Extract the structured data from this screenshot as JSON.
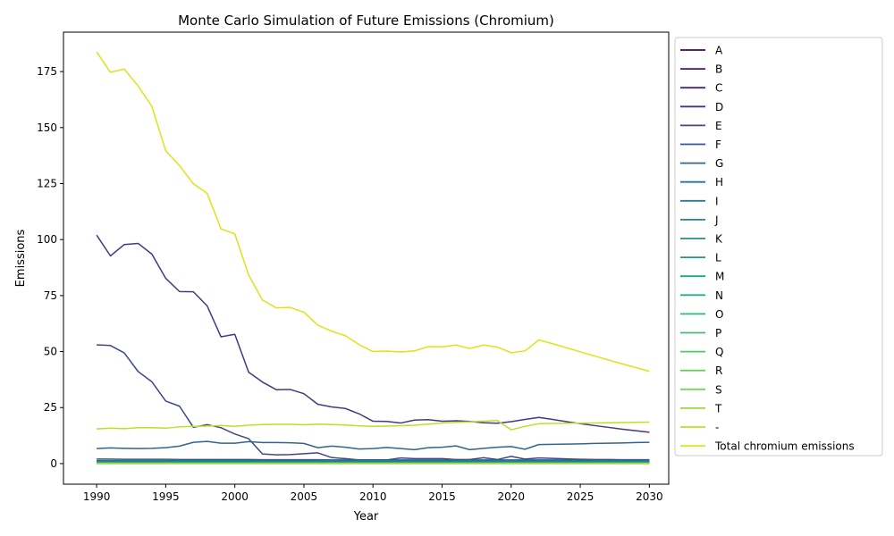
{
  "chart_data": {
    "type": "line",
    "title": "Monte Carlo Simulation of Future Emissions (Chromium)",
    "xlabel": "Year",
    "ylabel": "Emissions",
    "xlim": [
      1987.6,
      2031.4
    ],
    "ylim": [
      -9.2,
      192.6
    ],
    "xticks": [
      1990,
      1995,
      2000,
      2005,
      2010,
      2015,
      2020,
      2025,
      2030
    ],
    "yticks": [
      0,
      25,
      50,
      75,
      100,
      125,
      150,
      175
    ],
    "grid": false,
    "legend_position": "outside-right",
    "x": [
      1990,
      1991,
      1992,
      1993,
      1994,
      1995,
      1996,
      1997,
      1998,
      1999,
      2000,
      2001,
      2002,
      2003,
      2004,
      2005,
      2006,
      2007,
      2008,
      2009,
      2010,
      2011,
      2012,
      2013,
      2014,
      2015,
      2016,
      2017,
      2018,
      2019,
      2020,
      2021,
      2022,
      2023,
      2024,
      2025,
      2026,
      2027,
      2028,
      2029,
      2030
    ],
    "series": [
      {
        "name": "A",
        "color": "#440154",
        "values": [
          1.0,
          1.0,
          1.0,
          1.0,
          1.0,
          1.0,
          1.0,
          1.0,
          1.0,
          1.0,
          1.0,
          1.0,
          1.0,
          1.0,
          1.0,
          1.0,
          1.0,
          1.0,
          1.0,
          1.0,
          1.0,
          1.0,
          1.0,
          1.0,
          1.0,
          1.0,
          1.0,
          1.0,
          1.0,
          1.0,
          1.0,
          1.0,
          1.0,
          1.0,
          1.0,
          1.0,
          1.0,
          1.0,
          1.0,
          1.0,
          1.0
        ]
      },
      {
        "name": "B",
        "color": "#481467",
        "values": [
          0.6,
          0.6,
          0.6,
          0.6,
          0.6,
          0.6,
          0.6,
          0.6,
          0.6,
          0.6,
          0.6,
          0.6,
          0.6,
          0.6,
          0.6,
          0.6,
          0.6,
          0.6,
          0.6,
          0.6,
          0.6,
          0.6,
          0.6,
          0.6,
          0.6,
          0.6,
          0.6,
          0.6,
          0.6,
          0.6,
          0.6,
          0.6,
          0.6,
          0.6,
          0.6,
          0.6,
          0.6,
          0.6,
          0.6,
          0.6,
          0.6
        ]
      },
      {
        "name": "C",
        "color": "#482576",
        "values": [
          0.4,
          0.4,
          0.4,
          0.4,
          0.4,
          0.4,
          0.4,
          0.4,
          0.4,
          0.4,
          0.4,
          0.4,
          0.4,
          0.4,
          0.4,
          0.4,
          0.4,
          0.4,
          0.4,
          0.4,
          0.4,
          0.4,
          0.4,
          0.4,
          0.4,
          0.4,
          0.4,
          0.4,
          0.4,
          0.4,
          0.4,
          0.4,
          0.4,
          0.4,
          0.4,
          0.4,
          0.4,
          0.4,
          0.4,
          0.4,
          0.4
        ]
      },
      {
        "name": "D",
        "color": "#453781",
        "values": [
          102.0,
          92.7,
          97.8,
          98.3,
          93.5,
          82.7,
          76.8,
          76.7,
          70.4,
          56.6,
          57.7,
          40.8,
          36.4,
          33.0,
          33.1,
          31.2,
          26.5,
          25.3,
          24.6,
          22.2,
          18.9,
          18.8,
          18.1,
          19.4,
          19.6,
          18.9,
          19.1,
          18.8,
          18.2,
          18.0,
          18.7,
          19.7,
          20.6,
          19.7,
          18.7,
          17.8,
          17.0,
          16.2,
          15.4,
          14.7,
          14.0
        ]
      },
      {
        "name": "E",
        "color": "#3f4788",
        "values": [
          53.0,
          52.7,
          49.4,
          41.1,
          36.5,
          27.9,
          25.6,
          16.2,
          17.4,
          16.0,
          13.2,
          11.1,
          4.3,
          3.9,
          4.0,
          4.4,
          4.8,
          2.7,
          2.2,
          1.6,
          1.6,
          1.6,
          2.5,
          2.2,
          2.2,
          2.2,
          1.8,
          1.8,
          2.6,
          1.8,
          3.2,
          2.0,
          2.5,
          2.3,
          2.1,
          1.9,
          1.8,
          1.8,
          1.7,
          1.7,
          1.7
        ]
      },
      {
        "name": "F",
        "color": "#39558c",
        "values": [
          2.0,
          2.0,
          1.9,
          1.9,
          1.9,
          1.9,
          1.8,
          1.8,
          1.8,
          1.8,
          1.8,
          1.8,
          1.7,
          1.7,
          1.7,
          1.7,
          1.7,
          1.6,
          1.6,
          1.6,
          1.6,
          1.6,
          1.6,
          1.6,
          1.6,
          1.6,
          1.6,
          1.6,
          1.6,
          1.6,
          1.6,
          1.6,
          1.6,
          1.6,
          1.6,
          1.6,
          1.6,
          1.6,
          1.6,
          1.6,
          1.6
        ]
      },
      {
        "name": "G",
        "color": "#32648e",
        "values": [
          6.7,
          7.0,
          6.8,
          6.7,
          6.8,
          7.1,
          7.8,
          9.5,
          9.9,
          9.1,
          9.1,
          9.8,
          9.4,
          9.4,
          9.3,
          9.0,
          7.1,
          7.8,
          7.3,
          6.5,
          6.7,
          7.2,
          6.7,
          6.2,
          7.1,
          7.3,
          7.9,
          6.2,
          6.8,
          7.3,
          7.6,
          6.4,
          8.5,
          8.6,
          8.7,
          8.8,
          9.0,
          9.1,
          9.2,
          9.4,
          9.5
        ]
      },
      {
        "name": "H",
        "color": "#2d718e",
        "values": [
          1.3,
          1.3,
          1.3,
          1.3,
          1.3,
          1.3,
          1.3,
          1.3,
          1.3,
          1.3,
          1.3,
          1.3,
          1.3,
          1.3,
          1.3,
          1.3,
          1.3,
          1.3,
          1.3,
          1.3,
          1.3,
          1.3,
          1.3,
          1.3,
          1.3,
          1.3,
          1.3,
          1.3,
          1.3,
          1.3,
          1.3,
          1.3,
          1.3,
          1.3,
          1.3,
          1.3,
          1.3,
          1.3,
          1.3,
          1.3,
          1.3
        ]
      },
      {
        "name": "I",
        "color": "#297b8e",
        "values": [
          0.9,
          0.9,
          0.9,
          0.9,
          0.9,
          0.9,
          0.9,
          0.9,
          0.9,
          0.9,
          0.9,
          0.9,
          0.9,
          0.9,
          0.9,
          0.9,
          0.9,
          0.9,
          0.9,
          0.9,
          0.9,
          0.9,
          0.9,
          0.9,
          0.9,
          0.9,
          0.9,
          0.9,
          0.9,
          0.9,
          0.9,
          0.9,
          0.9,
          0.9,
          0.9,
          0.9,
          0.9,
          0.9,
          0.9,
          0.9,
          0.9
        ]
      },
      {
        "name": "J",
        "color": "#25858e",
        "values": [
          0.7,
          0.7,
          0.7,
          0.7,
          0.7,
          0.7,
          0.7,
          0.7,
          0.7,
          0.7,
          0.7,
          0.7,
          0.7,
          0.7,
          0.7,
          0.7,
          0.7,
          0.7,
          0.7,
          0.7,
          0.7,
          0.7,
          0.7,
          0.7,
          0.7,
          0.7,
          0.7,
          0.7,
          0.7,
          0.7,
          0.7,
          0.7,
          0.7,
          0.7,
          0.7,
          0.7,
          0.7,
          0.7,
          0.7,
          0.7,
          0.7
        ]
      },
      {
        "name": "K",
        "color": "#218f8d",
        "values": [
          0.5,
          0.5,
          0.5,
          0.5,
          0.5,
          0.5,
          0.5,
          0.5,
          0.5,
          0.5,
          0.5,
          0.5,
          0.5,
          0.5,
          0.5,
          0.5,
          0.5,
          0.5,
          0.5,
          0.5,
          0.5,
          0.5,
          0.5,
          0.5,
          0.5,
          0.5,
          0.5,
          0.5,
          0.5,
          0.5,
          0.5,
          0.5,
          0.5,
          0.5,
          0.5,
          0.5,
          0.5,
          0.5,
          0.5,
          0.5,
          0.5
        ]
      },
      {
        "name": "L",
        "color": "#1f998a",
        "values": [
          0.4,
          0.4,
          0.4,
          0.4,
          0.4,
          0.4,
          0.4,
          0.4,
          0.4,
          0.4,
          0.4,
          0.4,
          0.4,
          0.4,
          0.4,
          0.4,
          0.4,
          0.4,
          0.4,
          0.4,
          0.4,
          0.4,
          0.4,
          0.4,
          0.4,
          0.4,
          0.4,
          0.4,
          0.4,
          0.4,
          0.4,
          0.4,
          0.4,
          0.4,
          0.4,
          0.4,
          0.4,
          0.4,
          0.4,
          0.4,
          0.4
        ]
      },
      {
        "name": "M",
        "color": "#20a386",
        "values": [
          0.3,
          0.3,
          0.3,
          0.3,
          0.3,
          0.3,
          0.3,
          0.3,
          0.3,
          0.3,
          0.3,
          0.3,
          0.3,
          0.3,
          0.3,
          0.3,
          0.3,
          0.3,
          0.3,
          0.3,
          0.3,
          0.3,
          0.3,
          0.3,
          0.3,
          0.3,
          0.3,
          0.3,
          0.3,
          0.3,
          0.3,
          0.3,
          0.3,
          0.3,
          0.3,
          0.3,
          0.3,
          0.3,
          0.3,
          0.3,
          0.3
        ]
      },
      {
        "name": "N",
        "color": "#26ad81",
        "values": [
          0.2,
          0.2,
          0.2,
          0.2,
          0.2,
          0.2,
          0.2,
          0.2,
          0.2,
          0.2,
          0.2,
          0.2,
          0.2,
          0.2,
          0.2,
          0.2,
          0.2,
          0.2,
          0.2,
          0.2,
          0.2,
          0.2,
          0.2,
          0.2,
          0.2,
          0.2,
          0.2,
          0.2,
          0.2,
          0.2,
          0.2,
          0.2,
          0.2,
          0.2,
          0.2,
          0.2,
          0.2,
          0.2,
          0.2,
          0.2,
          0.2
        ]
      },
      {
        "name": "O",
        "color": "#31b678",
        "values": [
          0.2,
          0.2,
          0.2,
          0.2,
          0.2,
          0.2,
          0.2,
          0.2,
          0.2,
          0.2,
          0.2,
          0.2,
          0.2,
          0.2,
          0.2,
          0.2,
          0.2,
          0.2,
          0.2,
          0.2,
          0.2,
          0.2,
          0.2,
          0.2,
          0.2,
          0.2,
          0.2,
          0.2,
          0.2,
          0.2,
          0.2,
          0.2,
          0.2,
          0.2,
          0.2,
          0.2,
          0.2,
          0.2,
          0.2,
          0.2,
          0.2
        ]
      },
      {
        "name": "P",
        "color": "#3fbf6f",
        "values": [
          0.1,
          0.1,
          0.1,
          0.1,
          0.1,
          0.1,
          0.1,
          0.1,
          0.1,
          0.1,
          0.1,
          0.1,
          0.1,
          0.1,
          0.1,
          0.1,
          0.1,
          0.1,
          0.1,
          0.1,
          0.1,
          0.1,
          0.1,
          0.1,
          0.1,
          0.1,
          0.1,
          0.1,
          0.1,
          0.1,
          0.1,
          0.1,
          0.1,
          0.1,
          0.1,
          0.1,
          0.1,
          0.1,
          0.1,
          0.1,
          0.1
        ]
      },
      {
        "name": "Q",
        "color": "#51c766",
        "values": [
          0.1,
          0.1,
          0.1,
          0.1,
          0.1,
          0.1,
          0.1,
          0.1,
          0.1,
          0.1,
          0.1,
          0.1,
          0.1,
          0.1,
          0.1,
          0.1,
          0.1,
          0.1,
          0.1,
          0.1,
          0.1,
          0.1,
          0.1,
          0.1,
          0.1,
          0.1,
          0.1,
          0.1,
          0.1,
          0.1,
          0.1,
          0.1,
          0.1,
          0.1,
          0.1,
          0.1,
          0.1,
          0.1,
          0.1,
          0.1,
          0.1
        ]
      },
      {
        "name": "R",
        "color": "#66cf5c",
        "values": [
          0.1,
          0.1,
          0.1,
          0.1,
          0.1,
          0.1,
          0.1,
          0.1,
          0.1,
          0.1,
          0.1,
          0.1,
          0.1,
          0.1,
          0.1,
          0.1,
          0.1,
          0.1,
          0.1,
          0.1,
          0.1,
          0.1,
          0.1,
          0.1,
          0.1,
          0.1,
          0.1,
          0.1,
          0.1,
          0.1,
          0.1,
          0.1,
          0.1,
          0.1,
          0.1,
          0.1,
          0.1,
          0.1,
          0.1,
          0.1,
          0.1
        ]
      },
      {
        "name": "S",
        "color": "#7fd34e",
        "values": [
          0.0,
          0.0,
          0.0,
          0.0,
          0.0,
          0.0,
          0.0,
          0.0,
          0.0,
          0.0,
          0.0,
          0.0,
          0.0,
          0.0,
          0.0,
          0.0,
          0.0,
          0.0,
          0.0,
          0.0,
          0.0,
          0.0,
          0.0,
          0.0,
          0.0,
          0.0,
          0.0,
          0.0,
          0.0,
          0.0,
          0.0,
          0.0,
          0.0,
          0.0,
          0.0,
          0.0,
          0.0,
          0.0,
          0.0,
          0.0,
          0.0
        ]
      },
      {
        "name": "T",
        "color": "#9bd93c",
        "values": [
          0.0,
          0.0,
          0.0,
          0.0,
          0.0,
          0.0,
          0.0,
          0.0,
          0.0,
          0.0,
          0.0,
          0.0,
          0.0,
          0.0,
          0.0,
          0.0,
          0.0,
          0.0,
          0.0,
          0.0,
          0.0,
          0.0,
          0.0,
          0.0,
          0.0,
          0.0,
          0.0,
          0.0,
          0.0,
          0.0,
          0.0,
          0.0,
          0.0,
          0.0,
          0.0,
          0.0,
          0.0,
          0.0,
          0.0,
          0.0,
          0.0
        ]
      },
      {
        "name": "-",
        "color": "#bddf26",
        "values": [
          15.5,
          15.8,
          15.6,
          16.0,
          16.0,
          15.8,
          16.4,
          16.6,
          16.7,
          17.0,
          16.6,
          17.1,
          17.4,
          17.5,
          17.5,
          17.3,
          17.6,
          17.4,
          17.2,
          16.8,
          16.6,
          16.7,
          16.9,
          17.1,
          17.6,
          18.1,
          18.4,
          18.6,
          18.9,
          19.2,
          15.1,
          16.6,
          17.8,
          17.9,
          18.0,
          18.0,
          18.1,
          18.2,
          18.3,
          18.4,
          18.5
        ]
      },
      {
        "name": "Total chromium emissions",
        "color": "#dde318",
        "values": [
          183.8,
          174.7,
          176.1,
          168.6,
          159.4,
          139.6,
          133.0,
          124.9,
          120.6,
          104.8,
          102.5,
          84.2,
          73.0,
          69.5,
          69.7,
          67.6,
          61.8,
          59.1,
          57.1,
          53.1,
          50.0,
          50.2,
          49.8,
          50.3,
          52.2,
          52.1,
          52.9,
          51.4,
          52.9,
          52.0,
          49.5,
          50.3,
          55.2,
          53.5,
          51.7,
          49.9,
          48.1,
          46.3,
          44.6,
          42.9,
          41.2
        ]
      }
    ]
  }
}
